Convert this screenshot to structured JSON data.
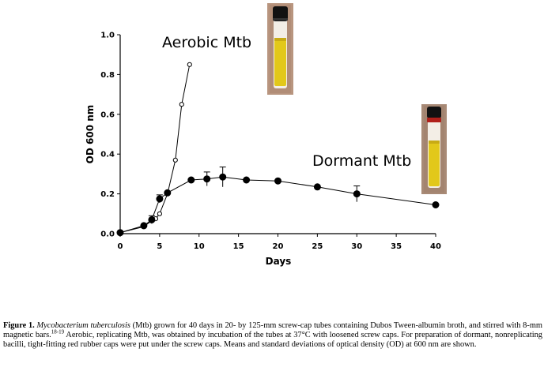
{
  "chart_data": {
    "type": "line",
    "xlabel": "Days",
    "ylabel": "OD 600 nm",
    "xlim": [
      0,
      40
    ],
    "ylim": [
      0,
      1.0
    ],
    "x_ticks": [
      "0",
      "5",
      "10",
      "15",
      "20",
      "25",
      "30",
      "35",
      "40"
    ],
    "y_ticks": [
      "0.0",
      "0.2",
      "0.4",
      "0.6",
      "0.8",
      "1.0"
    ],
    "grid": false,
    "legend": "none",
    "annotations": [
      "Aerobic Mtb",
      "Dormant Mtb"
    ],
    "series": [
      {
        "name": "Aerobic Mtb",
        "marker": "open-circle",
        "x": [
          0,
          3,
          4,
          4.5,
          5,
          6,
          7,
          7.8,
          8.8
        ],
        "y": [
          0.005,
          0.035,
          0.065,
          0.075,
          0.1,
          0.2,
          0.37,
          0.65,
          0.85
        ],
        "error": [
          0,
          0,
          0,
          0,
          0,
          0,
          0,
          0,
          0
        ]
      },
      {
        "name": "Dormant Mtb",
        "marker": "filled-circle",
        "x": [
          0,
          3,
          4,
          5,
          6,
          9,
          11,
          13,
          16,
          20,
          25,
          30,
          40
        ],
        "y": [
          0.005,
          0.04,
          0.07,
          0.175,
          0.205,
          0.27,
          0.275,
          0.285,
          0.27,
          0.265,
          0.235,
          0.2,
          0.145
        ],
        "error": [
          0,
          0,
          0.02,
          0.02,
          0,
          0,
          0.035,
          0.05,
          0,
          0,
          0,
          0.04,
          0
        ]
      }
    ]
  },
  "caption": {
    "label": "Figure 1.",
    "species": "Mycobacterium tuberculosis",
    "text1": " (Mtb) grown for 40 days in 20- by 125-mm screw-cap tubes containing Dubos Tween-albumin broth, and stirred with 8-mm magnetic bars.",
    "refs": "18-19",
    "text2": " Aerobic, replicating Mtb, was obtained by incubation of the tubes at 37°C with loosened screw caps. For preparation of dormant, nonreplicating bacilli, tight-fitting red rubber caps were put under the screw caps. Means and standard deviations of optical density (OD) at 600 nm are shown."
  },
  "colors": {
    "ink": "#000000",
    "tube_broth": "#e2c81a",
    "tube_background": "#b28d78",
    "red_rubber_cap": "#b0201a",
    "screw_cap": "#111111"
  }
}
